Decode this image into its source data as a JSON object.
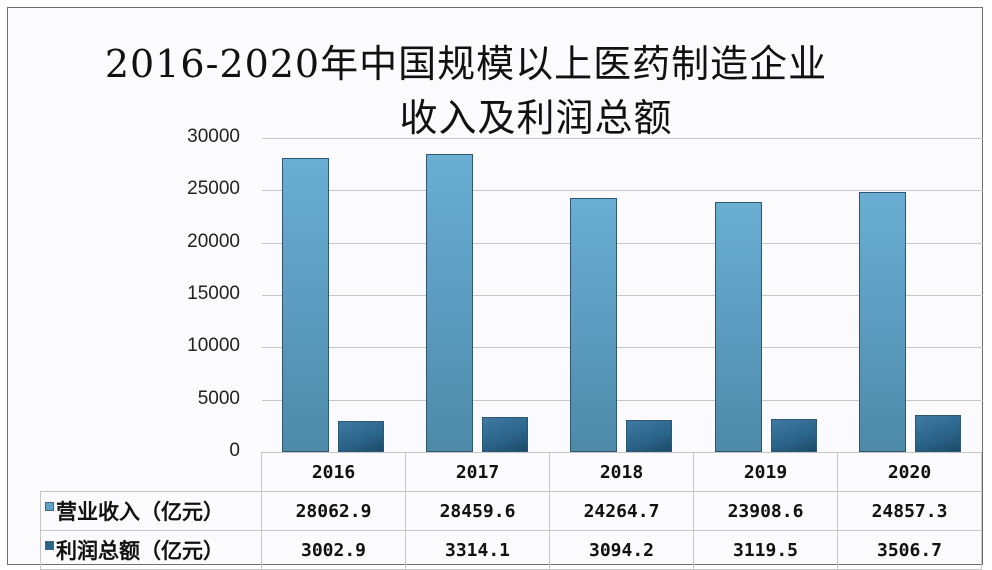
{
  "chart_data": {
    "type": "bar",
    "title": "2016-2020年中国规模以上医药制造企业收入及利润总额",
    "title_lines": [
      "2016-2020年中国规模以上医药制造企业",
      "收入及利润总额"
    ],
    "categories": [
      "2016",
      "2017",
      "2018",
      "2019",
      "2020"
    ],
    "series": [
      {
        "name": "营业收入（亿元）",
        "values": [
          28062.9,
          28459.6,
          24264.7,
          23908.6,
          24857.3
        ],
        "color": "#5fa3c8"
      },
      {
        "name": "利润总额（亿元）",
        "values": [
          3002.9,
          3314.1,
          3094.2,
          3119.5,
          3506.7
        ],
        "color": "#2c6489"
      }
    ],
    "xlabel": "",
    "ylabel": "",
    "ylim": [
      0,
      30000
    ],
    "yticks": [
      "30000",
      "25000",
      "20000",
      "15000",
      "10000",
      "5000",
      "0"
    ],
    "grid": true,
    "legend_position": "data-table-below",
    "table": {
      "headers": [
        "2016",
        "2017",
        "2018",
        "2019",
        "2020"
      ],
      "rows": [
        {
          "label": "营业收入（亿元）",
          "cells": [
            "28062.9",
            "28459.6",
            "24264.7",
            "23908.6",
            "24857.3"
          ]
        },
        {
          "label": "利润总额（亿元）",
          "cells": [
            "3002.9",
            "3314.1",
            "3094.2",
            "3119.5",
            "3506.7"
          ]
        }
      ]
    }
  }
}
